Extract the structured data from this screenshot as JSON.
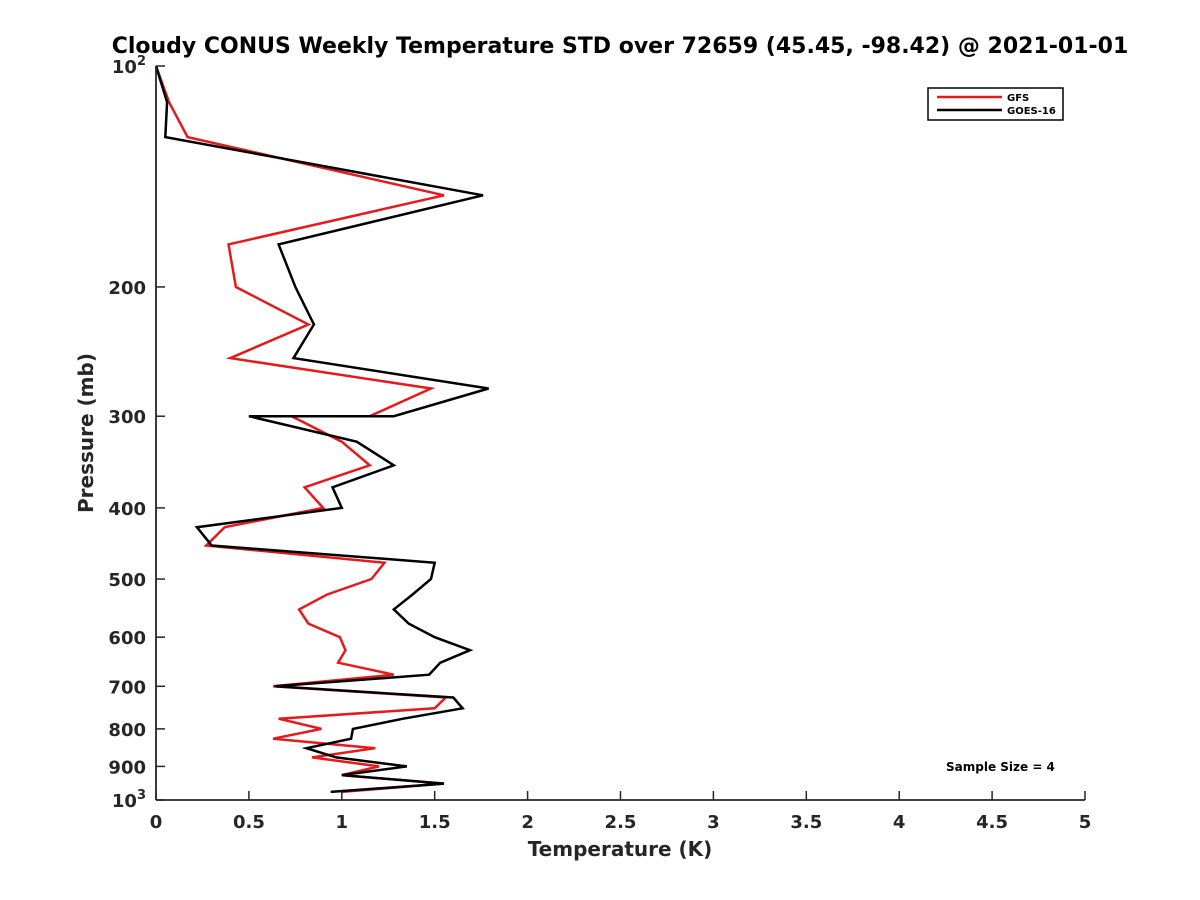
{
  "chart_data": {
    "type": "line",
    "title": "Cloudy CONUS Weekly Temperature STD over 72659 (45.45, -98.42) @ 2021-01-01",
    "xlabel": "Temperature (K)",
    "ylabel": "Pressure (mb)",
    "xlim": [
      0,
      5
    ],
    "ylim": [
      100,
      1000
    ],
    "y_scale": "log",
    "y_reversed": true,
    "x_ticks": [
      0,
      0.5,
      1,
      1.5,
      2,
      2.5,
      3,
      3.5,
      4,
      4.5,
      5
    ],
    "x_tick_labels": [
      "0",
      "0.5",
      "1",
      "1.5",
      "2",
      "2.5",
      "3",
      "3.5",
      "4",
      "4.5",
      "5"
    ],
    "y_ticks": [
      {
        "value": 100,
        "base": "10",
        "exp": "2"
      },
      {
        "value": 200,
        "label": "200"
      },
      {
        "value": 300,
        "label": "300"
      },
      {
        "value": 400,
        "label": "400"
      },
      {
        "value": 500,
        "label": "500"
      },
      {
        "value": 600,
        "label": "600"
      },
      {
        "value": 700,
        "label": "700"
      },
      {
        "value": 800,
        "label": "800"
      },
      {
        "value": 900,
        "label": "900"
      },
      {
        "value": 1000,
        "base": "10",
        "exp": "3"
      }
    ],
    "grid": false,
    "legend_position": "top-right",
    "annotation": "Sample Size = 4",
    "series": [
      {
        "name": "GFS",
        "color": "#e41a1c",
        "points": [
          [
            0.0,
            100
          ],
          [
            0.07,
            112
          ],
          [
            0.17,
            125
          ],
          [
            1.55,
            150
          ],
          [
            0.39,
            175
          ],
          [
            0.43,
            200
          ],
          [
            0.82,
            225
          ],
          [
            0.4,
            250
          ],
          [
            1.48,
            275
          ],
          [
            1.15,
            300
          ],
          [
            0.73,
            300
          ],
          [
            1.0,
            325
          ],
          [
            1.15,
            350
          ],
          [
            0.8,
            375
          ],
          [
            0.9,
            400
          ],
          [
            0.37,
            425
          ],
          [
            0.27,
            450
          ],
          [
            1.23,
            475
          ],
          [
            1.16,
            500
          ],
          [
            0.92,
            525
          ],
          [
            0.77,
            550
          ],
          [
            0.82,
            575
          ],
          [
            0.99,
            600
          ],
          [
            1.02,
            625
          ],
          [
            0.98,
            650
          ],
          [
            1.28,
            675
          ],
          [
            0.63,
            700
          ],
          [
            1.56,
            725
          ],
          [
            1.5,
            750
          ],
          [
            0.66,
            775
          ],
          [
            0.89,
            800
          ],
          [
            0.63,
            825
          ],
          [
            1.18,
            850
          ],
          [
            0.84,
            875
          ],
          [
            1.2,
            900
          ],
          [
            1.0,
            925
          ],
          [
            1.55,
            950
          ],
          [
            1.0,
            975
          ]
        ]
      },
      {
        "name": "GOES-16",
        "color": "#000000",
        "points": [
          [
            0.0,
            100
          ],
          [
            0.06,
            112
          ],
          [
            0.05,
            125
          ],
          [
            1.76,
            150
          ],
          [
            0.66,
            175
          ],
          [
            0.75,
            200
          ],
          [
            0.85,
            225
          ],
          [
            0.74,
            250
          ],
          [
            1.79,
            275
          ],
          [
            1.28,
            300
          ],
          [
            0.5,
            300
          ],
          [
            1.08,
            325
          ],
          [
            1.28,
            350
          ],
          [
            0.95,
            375
          ],
          [
            1.0,
            400
          ],
          [
            0.22,
            425
          ],
          [
            0.3,
            450
          ],
          [
            1.5,
            475
          ],
          [
            1.48,
            500
          ],
          [
            1.38,
            525
          ],
          [
            1.28,
            550
          ],
          [
            1.36,
            575
          ],
          [
            1.5,
            600
          ],
          [
            1.69,
            625
          ],
          [
            1.53,
            650
          ],
          [
            1.47,
            675
          ],
          [
            0.64,
            700
          ],
          [
            1.6,
            725
          ],
          [
            1.65,
            750
          ],
          [
            1.33,
            775
          ],
          [
            1.06,
            800
          ],
          [
            1.05,
            825
          ],
          [
            0.81,
            850
          ],
          [
            0.97,
            875
          ],
          [
            1.35,
            900
          ],
          [
            1.0,
            925
          ],
          [
            1.55,
            950
          ],
          [
            0.94,
            975
          ]
        ]
      }
    ]
  }
}
